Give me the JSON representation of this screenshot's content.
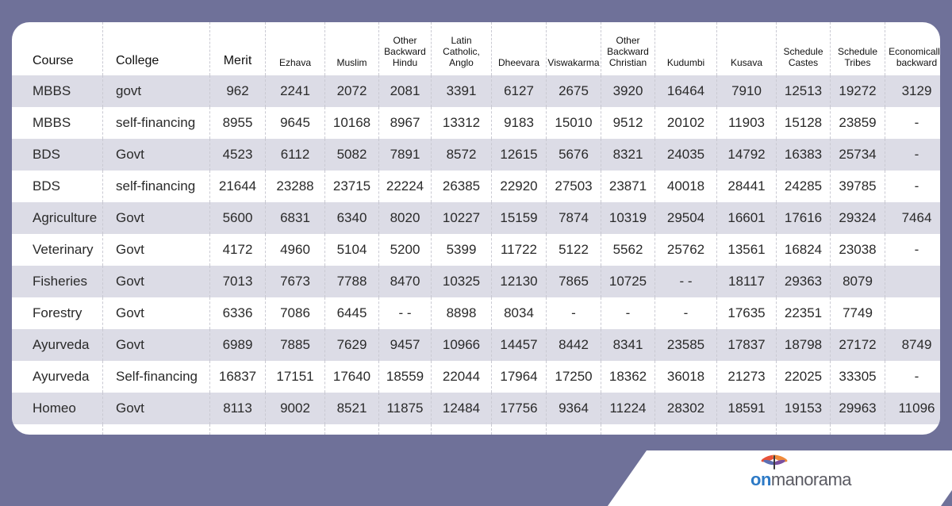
{
  "headers": [
    "Course",
    "College",
    "Merit",
    "Ezhava",
    "Muslim",
    "Other Backward Hindu",
    "Latin Catholic, Anglo",
    "Dheevara",
    "Viswakarma",
    "Other Backward Christian",
    "Kudumbi",
    "Kusava",
    "Schedule Castes",
    "Schedule Tribes",
    "Economically backward"
  ],
  "rows": [
    [
      "MBBS",
      "govt",
      "962",
      "2241",
      "2072",
      "2081",
      "3391",
      "6127",
      "2675",
      "3920",
      "16464",
      "7910",
      "12513",
      "19272",
      "3129"
    ],
    [
      "MBBS",
      "self-financing",
      "8955",
      "9645",
      "10168",
      "8967",
      "13312",
      "9183",
      "15010",
      "9512",
      "20102",
      "11903",
      "15128",
      "23859",
      "-"
    ],
    [
      "BDS",
      "Govt",
      "4523",
      "6112",
      "5082",
      "7891",
      "8572",
      "12615",
      "5676",
      "8321",
      "24035",
      "14792",
      "16383",
      "25734",
      "-"
    ],
    [
      "BDS",
      "self-financing",
      "21644",
      "23288",
      "23715",
      "22224",
      "26385",
      "22920",
      "27503",
      "23871",
      "40018",
      "28441",
      "24285",
      "39785",
      "-"
    ],
    [
      "Agriculture",
      "Govt",
      "5600",
      "6831",
      "6340",
      "8020",
      "10227",
      "15159",
      "7874",
      "10319",
      "29504",
      "16601",
      "17616",
      "29324",
      "7464"
    ],
    [
      "Veterinary",
      "Govt",
      "4172",
      "4960",
      "5104",
      "5200",
      "5399",
      "11722",
      "5122",
      "5562",
      "25762",
      "13561",
      "16824",
      "23038",
      "-"
    ],
    [
      "Fisheries",
      "Govt",
      "7013",
      "7673",
      "7788",
      "8470",
      "10325",
      "12130",
      "7865",
      "10725",
      "-      -",
      "18117",
      "29363",
      "8079",
      ""
    ],
    [
      "Forestry",
      "Govt",
      "6336",
      "7086",
      "6445",
      "-      -",
      "8898",
      "8034",
      "-",
      "-",
      "-",
      "17635",
      "22351",
      "7749",
      ""
    ],
    [
      "Ayurveda",
      "Govt",
      "6989",
      "7885",
      "7629",
      "9457",
      "10966",
      "14457",
      "8442",
      "8341",
      "23585",
      "17837",
      "18798",
      "27172",
      "8749"
    ],
    [
      "Ayurveda",
      "Self-financing",
      "16837",
      "17151",
      "17640",
      "18559",
      "22044",
      "17964",
      "17250",
      "18362",
      "36018",
      "21273",
      "22025",
      "33305",
      "-"
    ],
    [
      "Homeo",
      "Govt",
      "8113",
      "9002",
      "8521",
      "11875",
      "12484",
      "17756",
      "9364",
      "11224",
      "28302",
      "18591",
      "19153",
      "29963",
      "11096"
    ]
  ],
  "logo": {
    "brand_prefix": "on",
    "brand_suffix": "manorama"
  },
  "colors": {
    "background": "#6f7199",
    "stripe": "#dcdce6",
    "brand_blue": "#2d7ac6",
    "logo_accent": "#e8523a"
  },
  "icons": {
    "logo_mark": "dragonfly-icon"
  }
}
